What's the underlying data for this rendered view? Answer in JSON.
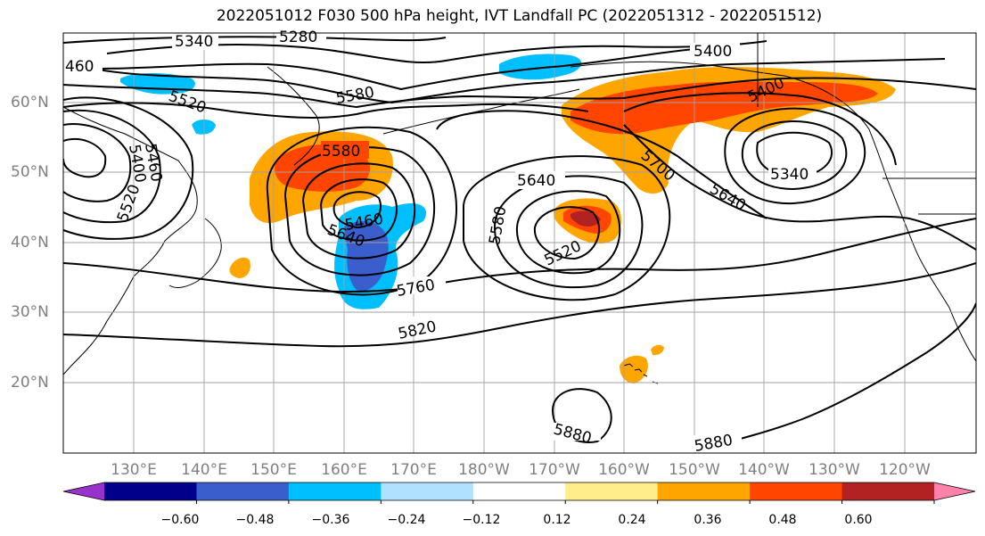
{
  "title": "2022051012 F030 500 hPa height, IVT Landfall PC (2022051312 - 2022051512)",
  "map": {
    "lat_labels": [
      "60°N",
      "50°N",
      "40°N",
      "30°N",
      "20°N"
    ],
    "lon_labels": [
      "130°E",
      "140°E",
      "150°E",
      "160°E",
      "170°E",
      "180°W",
      "170°W",
      "160°W",
      "150°W",
      "140°W",
      "130°W",
      "120°W"
    ],
    "grid": true,
    "label_color": "#808080"
  },
  "contour_labels": [
    "5340",
    "5280",
    "5400",
    "460",
    "5520",
    "5580",
    "5460",
    "5400",
    "5520",
    "5580",
    "5640",
    "5400",
    "5640",
    "5340",
    "5700",
    "5640",
    "5580",
    "5520",
    "5460",
    "5760",
    "5820",
    "5880",
    "5880"
  ],
  "colorbar": {
    "ticks": [
      "−0.60",
      "−0.48",
      "−0.36",
      "−0.24",
      "−0.12",
      "0.12",
      "0.24",
      "0.36",
      "0.48",
      "0.60"
    ],
    "colors": [
      "#9932cc",
      "#00008b",
      "#3a5fcd",
      "#00bfff",
      "#b0e2ff",
      "#ffffff",
      "#ffec8b",
      "#ffa500",
      "#ff4500",
      "#b22222",
      "#ff82ab"
    ],
    "extend": "both"
  }
}
